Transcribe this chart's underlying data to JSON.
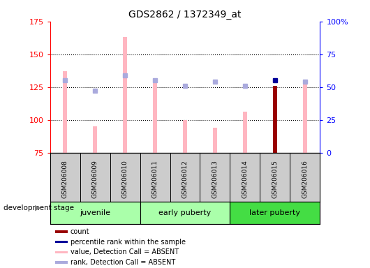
{
  "title": "GDS2862 / 1372349_at",
  "samples": [
    "GSM206008",
    "GSM206009",
    "GSM206010",
    "GSM206011",
    "GSM206012",
    "GSM206013",
    "GSM206014",
    "GSM206015",
    "GSM206016"
  ],
  "value_bars": [
    137,
    95,
    163,
    128,
    100,
    94,
    106,
    126,
    127
  ],
  "rank_bars": [
    130,
    122,
    134,
    130,
    126,
    129,
    126,
    130,
    129
  ],
  "value_color_absent": "#FFB6C1",
  "rank_color_absent": "#AAAADD",
  "count_color": "#990000",
  "rank_within_color": "#000099",
  "count_bar_index": 7,
  "count_bar_val": 126,
  "rank_within_val": 130,
  "ylim_left": [
    75,
    175
  ],
  "ylim_right": [
    0,
    100
  ],
  "yticks_left": [
    75,
    100,
    125,
    150,
    175
  ],
  "yticks_right": [
    0,
    25,
    50,
    75,
    100
  ],
  "yticklabels_right": [
    "0",
    "25",
    "50",
    "75",
    "100%"
  ],
  "bar_bottom": 75,
  "dotted_lines": [
    100,
    125,
    150
  ],
  "groups": [
    {
      "name": "juvenile",
      "start": 0,
      "end": 3,
      "color": "#AAFFAA"
    },
    {
      "name": "early puberty",
      "start": 3,
      "end": 6,
      "color": "#AAFFAA"
    },
    {
      "name": "later puberty",
      "start": 6,
      "end": 9,
      "color": "#44DD44"
    }
  ],
  "legend_items": [
    {
      "color": "#990000",
      "label": "count"
    },
    {
      "color": "#000099",
      "label": "percentile rank within the sample"
    },
    {
      "color": "#FFB6C1",
      "label": "value, Detection Call = ABSENT"
    },
    {
      "color": "#AAAADD",
      "label": "rank, Detection Call = ABSENT"
    }
  ],
  "group_label": "development stage",
  "sample_panel_color": "#CCCCCC",
  "background_color": "#ffffff",
  "bar_width": 0.12,
  "rank_marker_size": 5
}
